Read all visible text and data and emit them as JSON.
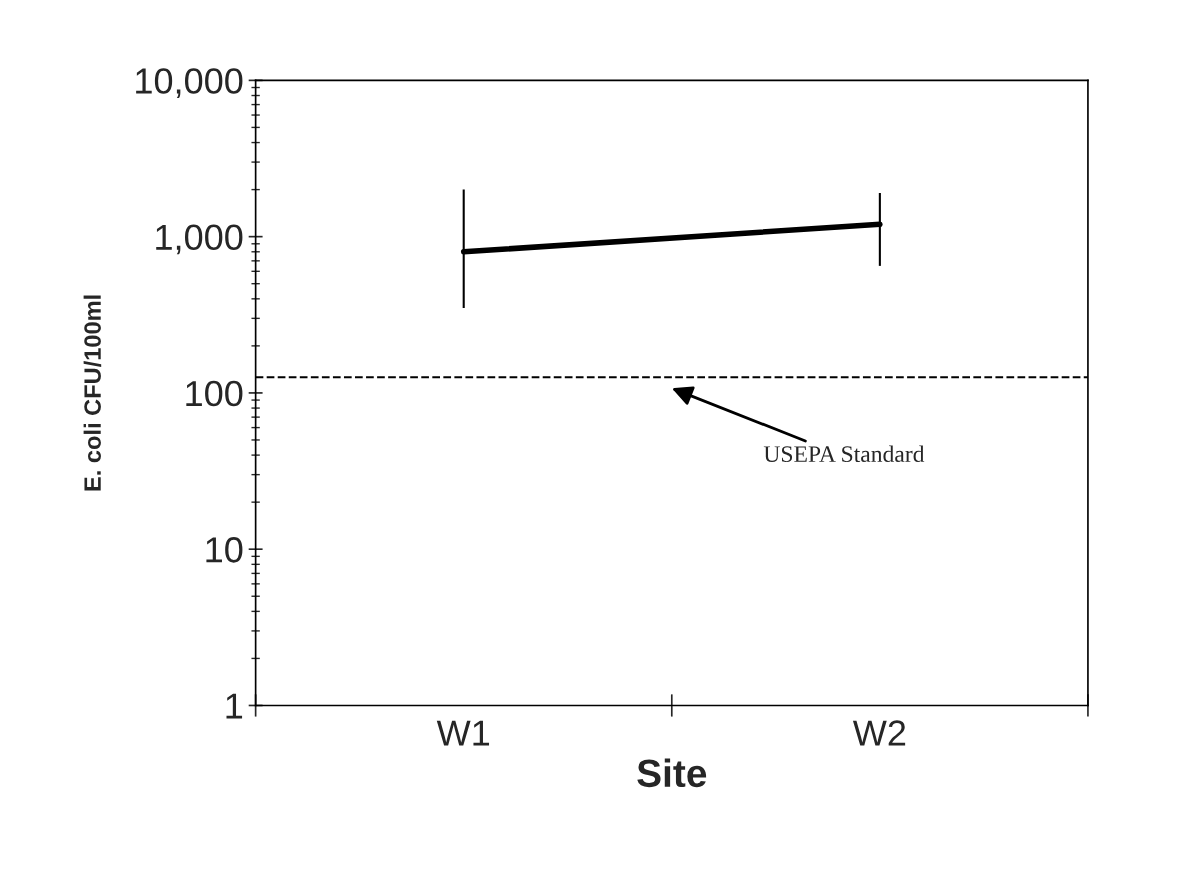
{
  "chart_data": {
    "type": "line",
    "xlabel": "Site",
    "ylabel": "E. coli CFU/100ml",
    "categories": [
      "W1",
      "W2"
    ],
    "series": [
      {
        "color": "#000000",
        "values": [
          800,
          1200
        ],
        "errors": [
          [
            350,
            2000
          ],
          [
            650,
            1900
          ]
        ]
      }
    ],
    "log": "y",
    "ylim": [
      1,
      10000
    ],
    "yticks": [
      1,
      10,
      {
        "value": 100,
        "label": "100"
      },
      {
        "value": 1000,
        "label": "1,000"
      },
      {
        "value": 10000,
        "label": "10,000"
      }
    ],
    "ref_lines": [
      {
        "axis": "y",
        "value": 126,
        "label": "USEPA Standard",
        "color": "#000000",
        "line_style": "dashed"
      }
    ],
    "grid": false,
    "legend": false,
    "marker": "none",
    "line_style": "solid"
  }
}
